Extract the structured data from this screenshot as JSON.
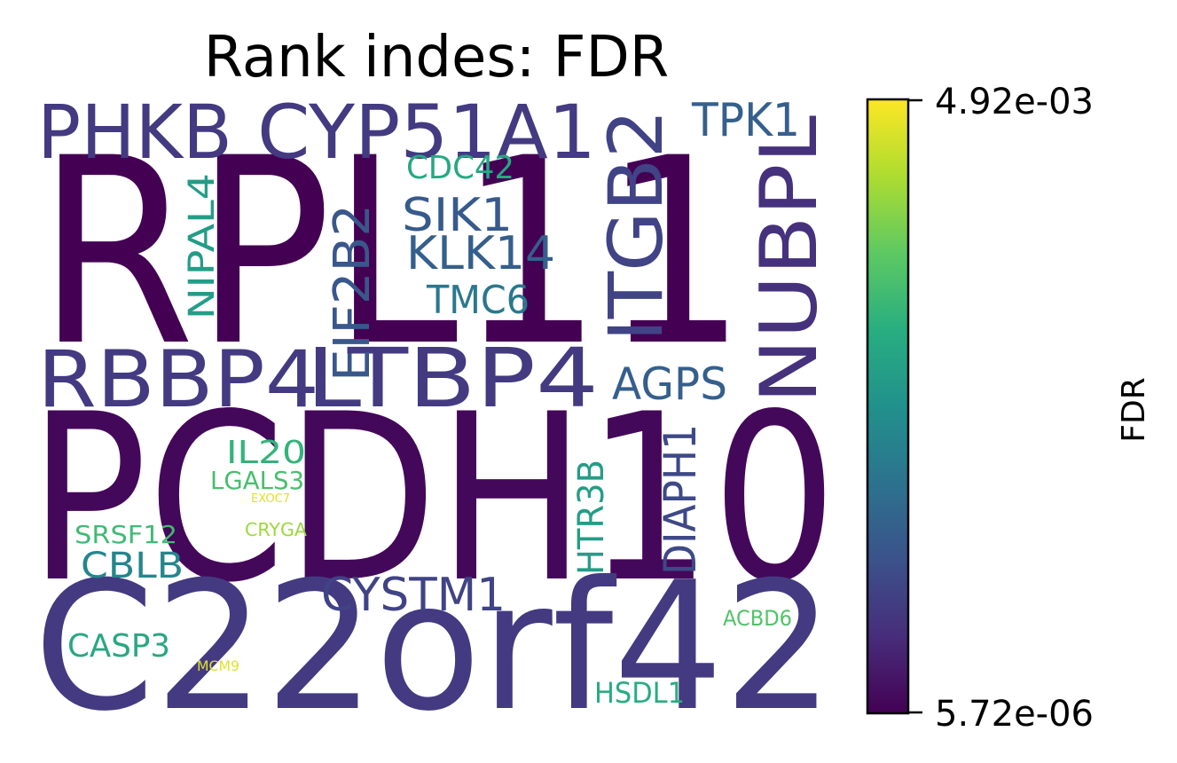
{
  "chart_data": {
    "type": "wordcloud",
    "title": "Rank indes: FDR",
    "colorbar": {
      "label": "FDR",
      "min_label": "5.72e-06",
      "max_label": "4.92e-03",
      "min": 5.72e-06,
      "max": 0.00492,
      "colormap": "viridis"
    },
    "words": [
      {
        "text": "RPL11",
        "fdr_fraction": 0.0
      },
      {
        "text": "PCDH10",
        "fdr_fraction": 0.02
      },
      {
        "text": "C22orf42",
        "fdr_fraction": 0.17
      },
      {
        "text": "PHKB",
        "fdr_fraction": 0.17
      },
      {
        "text": "CYP51A1",
        "fdr_fraction": 0.17
      },
      {
        "text": "RBBP4",
        "fdr_fraction": 0.17
      },
      {
        "text": "LTBP4",
        "fdr_fraction": 0.17
      },
      {
        "text": "ITGB2",
        "fdr_fraction": 0.2
      },
      {
        "text": "NUBPL",
        "fdr_fraction": 0.14
      },
      {
        "text": "TPK1",
        "fdr_fraction": 0.3
      },
      {
        "text": "EIF2B2",
        "fdr_fraction": 0.27
      },
      {
        "text": "SIK1",
        "fdr_fraction": 0.28
      },
      {
        "text": "KLK14",
        "fdr_fraction": 0.3
      },
      {
        "text": "CDC42",
        "fdr_fraction": 0.6
      },
      {
        "text": "NIPAL4",
        "fdr_fraction": 0.55
      },
      {
        "text": "TMC6",
        "fdr_fraction": 0.4
      },
      {
        "text": "AGPS",
        "fdr_fraction": 0.3
      },
      {
        "text": "DIAPH1",
        "fdr_fraction": 0.22
      },
      {
        "text": "HTR3B",
        "fdr_fraction": 0.55
      },
      {
        "text": "IL20",
        "fdr_fraction": 0.65
      },
      {
        "text": "LGALS3",
        "fdr_fraction": 0.7
      },
      {
        "text": "EXOC7",
        "fdr_fraction": 0.95
      },
      {
        "text": "CRYGA",
        "fdr_fraction": 0.85
      },
      {
        "text": "SRSF12",
        "fdr_fraction": 0.68
      },
      {
        "text": "CBLB",
        "fdr_fraction": 0.45
      },
      {
        "text": "CYSTM1",
        "fdr_fraction": 0.2
      },
      {
        "text": "CASP3",
        "fdr_fraction": 0.6
      },
      {
        "text": "MCM9",
        "fdr_fraction": 0.95
      },
      {
        "text": "ACBD6",
        "fdr_fraction": 0.72
      },
      {
        "text": "HSDL1",
        "fdr_fraction": 0.62
      }
    ]
  }
}
